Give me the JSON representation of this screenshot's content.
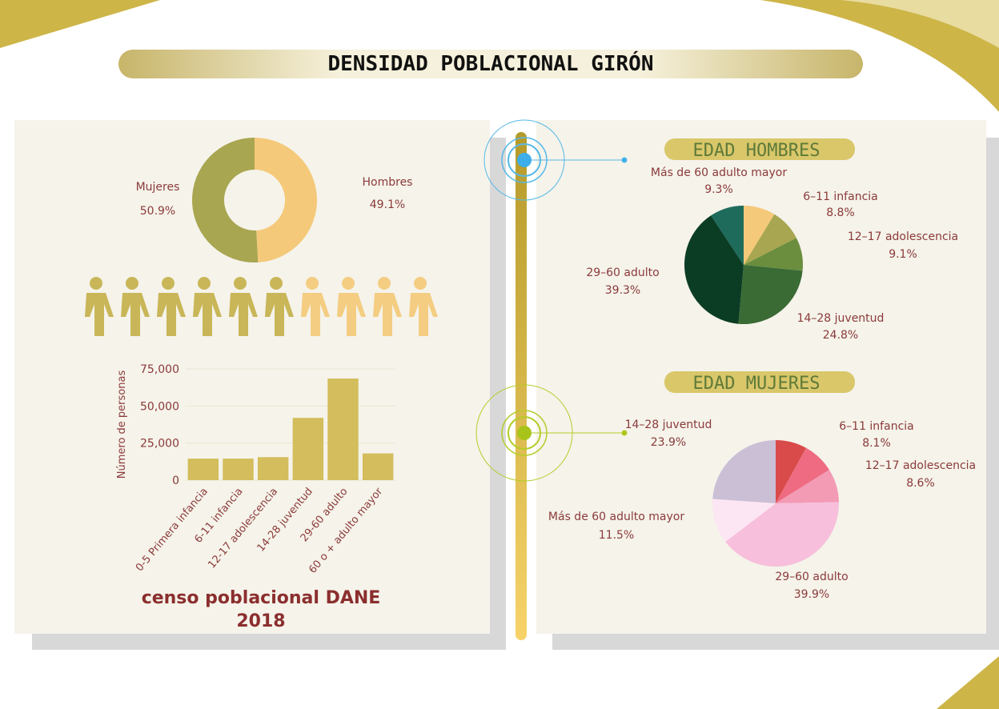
{
  "title": "DENSIDAD POBLACIONAL GIRÓN",
  "caption": [
    "censo poblacional DANE",
    "2018"
  ],
  "chart_data": [
    {
      "type": "donut",
      "categories": [
        "Mujeres",
        "Hombres"
      ],
      "values": [
        50.9,
        49.1
      ],
      "value_labels": [
        "50.9%",
        "49.1%"
      ],
      "colors": [
        "#a8a650",
        "#f5c97a"
      ]
    },
    {
      "type": "bar",
      "y_label": "Número de personas",
      "categories": [
        "0-5 Primera infancia",
        "6-11 infancia",
        "12-17 adolescencia",
        "14-28 juventud",
        "29-60 adulto",
        "60 o + adulto mayor"
      ],
      "values": [
        14500,
        14500,
        15500,
        42000,
        68500,
        18000
      ],
      "color": "#d3bd5c",
      "ylim": [
        0,
        75000
      ],
      "yticks": [
        0,
        {
          "value": 25000,
          "label": "25,000"
        },
        {
          "value": 50000,
          "label": "50,000"
        },
        {
          "value": 75000,
          "label": "75,000"
        }
      ],
      "grid": true
    },
    {
      "type": "pie",
      "title": "EDAD HOMBRES",
      "categories": [
        null,
        "6–11 infancia",
        "12–17 adolescencia",
        "14–28 juventud",
        "29–60 adulto",
        "Más de 60 adulto mayor"
      ],
      "values": [
        8.7,
        8.8,
        9.1,
        24.8,
        39.3,
        9.3
      ],
      "value_labels": [
        null,
        "8.8%",
        "9.1%",
        "24.8%",
        "39.3%",
        "9.3%"
      ],
      "colors": [
        "#f5c97a",
        "#a8a650",
        "#6b8e3e",
        "#3a6b35",
        "#0b3d25",
        "#1e6b5c"
      ]
    },
    {
      "type": "pie",
      "title": "EDAD MUJERES",
      "categories": [
        null,
        "6–11 infancia",
        "12–17 adolescencia",
        "29–60 adulto",
        "Más de 60 adulto mayor",
        "14–28 juventud"
      ],
      "values": [
        8.0,
        8.1,
        8.6,
        39.9,
        11.5,
        23.9
      ],
      "value_labels": [
        null,
        "8.1%",
        "8.6%",
        "39.9%",
        "11.5%",
        "23.9%"
      ],
      "colors": [
        "#d94a4a",
        "#ee6b82",
        "#f39ab5",
        "#f7bfdc",
        "#fde6f3",
        "#cbbfd6"
      ]
    }
  ]
}
